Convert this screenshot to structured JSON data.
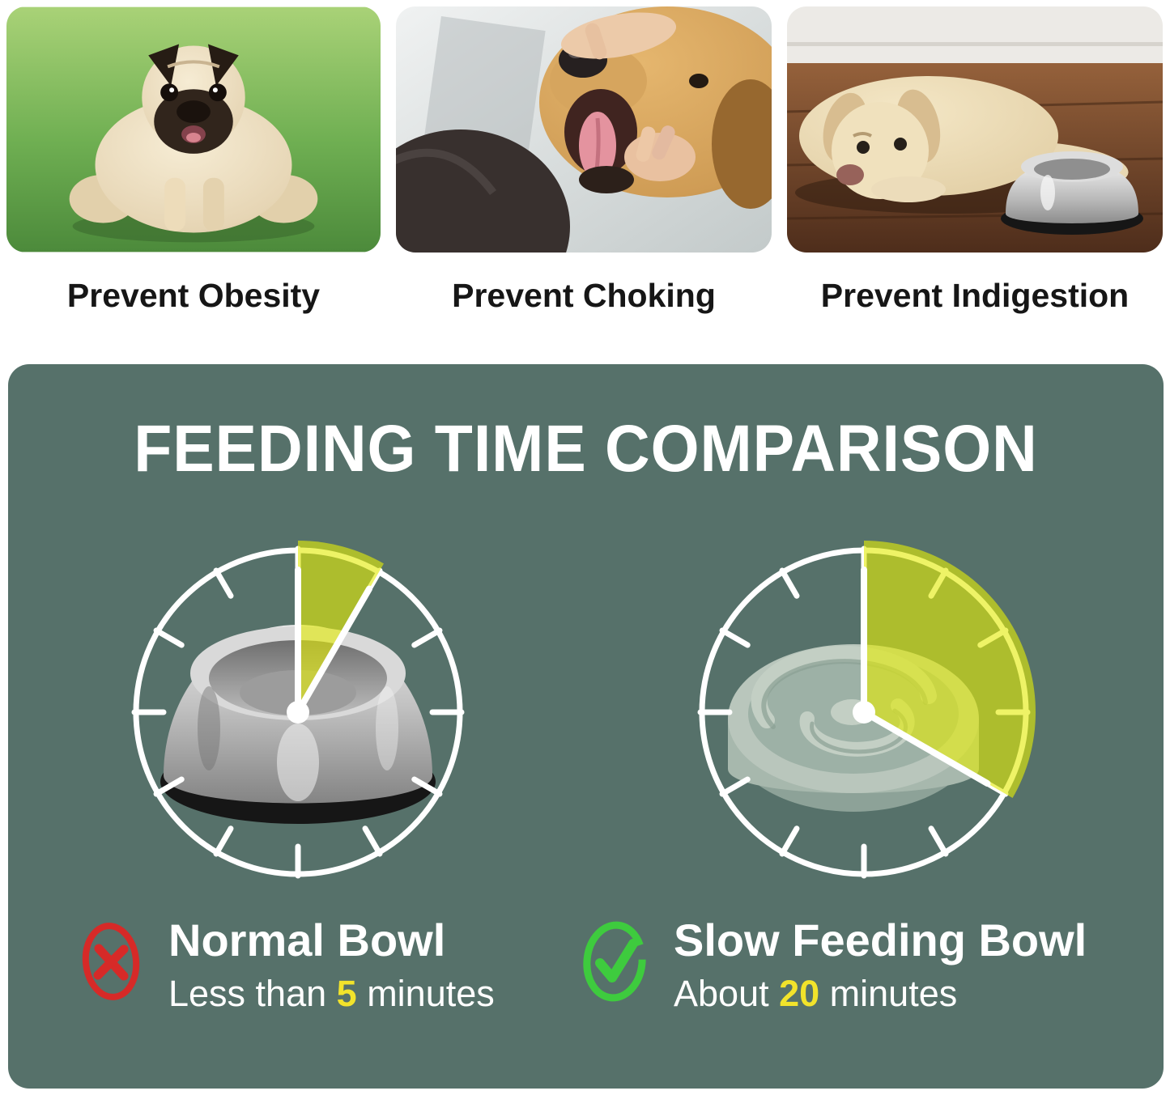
{
  "benefits": {
    "items": [
      {
        "caption": "Prevent Obesity",
        "photo": "overweight-pug-standing-on-grass"
      },
      {
        "caption": "Prevent Choking",
        "photo": "owner-checking-golden-retriever-open-mouth"
      },
      {
        "caption": "Prevent Indigestion",
        "photo": "sad-labrador-lying-on-floor-beside-steel-bowl"
      }
    ]
  },
  "comparison": {
    "title": "FEEDING TIME COMPARISON",
    "clocks": [
      {
        "name": "normal-bowl-clock",
        "bowl": "stainless-steel-bowl",
        "minutes": 5,
        "sweep_deg": 30,
        "tick_count": 12
      },
      {
        "name": "slow-bowl-clock",
        "bowl": "slow-feeder-maze-bowl",
        "minutes": 20,
        "sweep_deg": 120,
        "tick_count": 12
      }
    ],
    "results": [
      {
        "verdict": "cross",
        "label": "Normal Bowl",
        "detail_prefix": "Less than ",
        "detail_value": "5",
        "detail_suffix": " minutes"
      },
      {
        "verdict": "check",
        "label": "Slow Feeding Bowl",
        "detail_prefix": "About ",
        "detail_value": "20",
        "detail_suffix": " minutes"
      }
    ],
    "colors": {
      "panel_bg": "#56716a",
      "wedge_yellow": "#e3ec08",
      "clock_white": "#ffffff",
      "cross_red": "#d62a28",
      "check_green": "#3ecb3e",
      "highlight_yellow": "#f2e32b"
    }
  }
}
